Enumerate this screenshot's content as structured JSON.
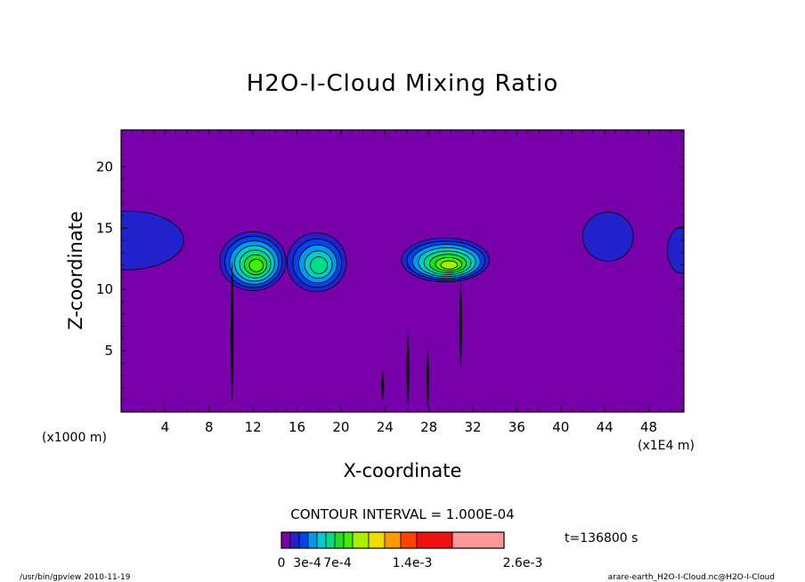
{
  "chart_data": {
    "type": "heatmap",
    "title": "H2O-I-Cloud Mixing Ratio",
    "xlabel": "X-coordinate",
    "ylabel": "Z-coordinate",
    "x_unit_left": "(x1000 m)",
    "x_unit_right": "(x1E4 m)",
    "xlim": [
      0,
      51.2
    ],
    "ylim": [
      0,
      23
    ],
    "x_ticks": [
      4,
      8,
      12,
      16,
      20,
      24,
      28,
      32,
      36,
      40,
      44,
      48
    ],
    "y_ticks": [
      5,
      10,
      15,
      20
    ],
    "contour_interval_text": "CONTOUR INTERVAL = 1.000E-04",
    "time_label": "t=136800 s",
    "levels": [
      0,
      0.0001,
      0.0002,
      0.0003,
      0.0004,
      0.0005,
      0.0006,
      0.0007,
      0.0008,
      0.001,
      0.0012,
      0.0014,
      0.0017,
      0.002,
      0.0026
    ],
    "colorbar": {
      "colors": [
        "#7700aa",
        "#2222cc",
        "#0044ee",
        "#0099ee",
        "#00cccc",
        "#00dd88",
        "#22dd22",
        "#44ee00",
        "#aaee00",
        "#eedd00",
        "#ff9900",
        "#ff4400",
        "#ee1111",
        "#ff9999"
      ],
      "labels": [
        "0",
        "3e-4",
        "7e-4",
        "1.4e-3",
        "2.6e-3"
      ]
    },
    "background_color": "#7700aa",
    "features": [
      {
        "name": "cloud",
        "x": 0.5,
        "z": 14.0,
        "rx": 5.2,
        "rz": 2.4,
        "max_level": 1
      },
      {
        "name": "cloud",
        "x": 12.0,
        "z": 12.3,
        "rx": 3.0,
        "rz": 2.4,
        "max_level": 7
      },
      {
        "name": "cloud",
        "x": 17.8,
        "z": 12.2,
        "rx": 2.7,
        "rz": 2.4,
        "max_level": 5
      },
      {
        "name": "cloud",
        "x": 29.5,
        "z": 12.4,
        "rx": 4.0,
        "rz": 1.8,
        "max_level": 8
      },
      {
        "name": "cloud",
        "x": 44.3,
        "z": 14.3,
        "rx": 2.3,
        "rz": 2.0,
        "max_level": 1
      },
      {
        "name": "cloud",
        "x": 51.0,
        "z": 13.2,
        "rx": 1.3,
        "rz": 1.9,
        "max_level": 1
      },
      {
        "name": "fall-streak",
        "x": 10.1,
        "z_top": 12.2,
        "z_bottom": 0.8
      },
      {
        "name": "fall-streak",
        "x": 26.1,
        "z_top": 6.3,
        "z_bottom": 0.6
      },
      {
        "name": "fall-streak",
        "x": 27.9,
        "z_top": 5.0,
        "z_bottom": 0.4
      },
      {
        "name": "fall-streak",
        "x": 30.9,
        "z_top": 10.6,
        "z_bottom": 3.7
      },
      {
        "name": "fall-streak",
        "x": 23.8,
        "z_top": 3.3,
        "z_bottom": 1.0
      }
    ]
  },
  "footer": {
    "left": "/usr/bin/gpview   2010-11-19",
    "right": "arare-earth_H2O-I-Cloud.nc@H2O-I-Cloud"
  }
}
